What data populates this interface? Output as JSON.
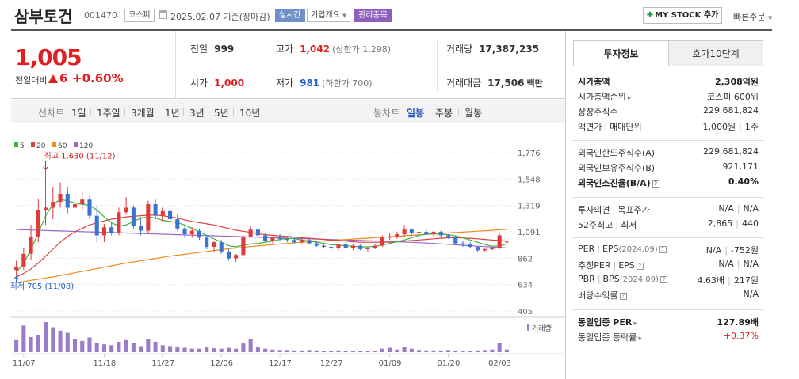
{
  "header": {
    "name": "삼부토건",
    "code": "001470",
    "market": "코스피",
    "date": "2025.02.07 기준(장마감)",
    "realtime": "실시간",
    "company_overview": "기업개요",
    "managed": "관리종목",
    "mystock": "MY STOCK 추가",
    "quick_order": "빠른주문"
  },
  "price": {
    "current": "1,005",
    "change_label": "전일대비",
    "change": "6",
    "change_pct": "+0.60%"
  },
  "stats": {
    "prev_label": "전일",
    "prev": "999",
    "open_label": "시가",
    "open": "1,000",
    "high_label": "고가",
    "high": "1,042",
    "upper_limit": "(상한가 1,298)",
    "low_label": "저가",
    "low": "981",
    "lower_limit": "(하한가 700)",
    "volume_label": "거래량",
    "volume": "17,387,235",
    "amount_label": "거래대금",
    "amount": "17,506",
    "amount_unit": "백만"
  },
  "periods": {
    "line_label": "선차트",
    "items": [
      "1일",
      "1주일",
      "3개월",
      "1년",
      "3년",
      "5년",
      "10년"
    ],
    "candle_label": "봉차트",
    "candle_items": [
      "일봉",
      "주봉",
      "월봉"
    ],
    "active_candle": "일봉"
  },
  "chart_data": {
    "type": "candlestick",
    "legend": [
      {
        "name": "5",
        "color": "#3cb33c"
      },
      {
        "name": "20",
        "color": "#e04040"
      },
      {
        "name": "60",
        "color": "#f08a1e"
      },
      {
        "name": "120",
        "color": "#9a66cc"
      }
    ],
    "y_ticks": [
      "1,776",
      "1,548",
      "1,319",
      "1,091",
      "862",
      "634",
      "405"
    ],
    "x_ticks": [
      "11/07",
      "11/18",
      "11/27",
      "12/06",
      "12/17",
      "12/27",
      "01/09",
      "01/20",
      "02/03"
    ],
    "max_label": "최고 1,630 (11/12)",
    "min_label": "최저 705 (11/08)",
    "volume_label": "거래량",
    "candles": [
      [
        760,
        840,
        705,
        790
      ],
      [
        790,
        950,
        760,
        900
      ],
      [
        900,
        1150,
        850,
        1050
      ],
      [
        1050,
        1380,
        1000,
        1280
      ],
      [
        1280,
        1630,
        1150,
        1300
      ],
      [
        1300,
        1480,
        1200,
        1350
      ],
      [
        1350,
        1520,
        1300,
        1420
      ],
      [
        1420,
        1480,
        1250,
        1300
      ],
      [
        1300,
        1400,
        1180,
        1330
      ],
      [
        1330,
        1450,
        1280,
        1370
      ],
      [
        1370,
        1400,
        1200,
        1230
      ],
      [
        1230,
        1320,
        1000,
        1060
      ],
      [
        1060,
        1160,
        1000,
        1130
      ],
      [
        1130,
        1180,
        1060,
        1080
      ],
      [
        1080,
        1300,
        1060,
        1260
      ],
      [
        1260,
        1390,
        1240,
        1300
      ],
      [
        1300,
        1320,
        1120,
        1140
      ],
      [
        1140,
        1220,
        1060,
        1100
      ],
      [
        1100,
        1360,
        1080,
        1330
      ],
      [
        1330,
        1370,
        1200,
        1230
      ],
      [
        1230,
        1300,
        1180,
        1270
      ],
      [
        1270,
        1320,
        1180,
        1200
      ],
      [
        1200,
        1240,
        1100,
        1120
      ],
      [
        1120,
        1140,
        1040,
        1070
      ],
      [
        1070,
        1130,
        1040,
        1100
      ],
      [
        1100,
        1120,
        1020,
        1040
      ],
      [
        1040,
        1060,
        940,
        960
      ],
      [
        960,
        1010,
        920,
        1000
      ],
      [
        1000,
        1020,
        900,
        920
      ],
      [
        920,
        940,
        840,
        860
      ],
      [
        860,
        900,
        830,
        890
      ],
      [
        890,
        1060,
        880,
        1050
      ],
      [
        1050,
        1140,
        1040,
        1110
      ],
      [
        1110,
        1130,
        1040,
        1060
      ],
      [
        1060,
        1080,
        1000,
        1010
      ],
      [
        1010,
        1050,
        990,
        1040
      ],
      [
        1040,
        1070,
        1010,
        1030
      ],
      [
        1030,
        1050,
        1000,
        1020
      ],
      [
        1020,
        1040,
        990,
        1000
      ],
      [
        1000,
        1030,
        990,
        1020
      ],
      [
        1020,
        1030,
        980,
        990
      ],
      [
        990,
        1010,
        960,
        970
      ],
      [
        970,
        990,
        950,
        960
      ],
      [
        960,
        980,
        930,
        950
      ],
      [
        950,
        990,
        930,
        980
      ],
      [
        980,
        990,
        940,
        950
      ],
      [
        950,
        980,
        930,
        970
      ],
      [
        970,
        980,
        930,
        940
      ],
      [
        940,
        960,
        920,
        950
      ],
      [
        950,
        980,
        940,
        970
      ],
      [
        970,
        1060,
        960,
        1040
      ],
      [
        1040,
        1080,
        1020,
        1050
      ],
      [
        1050,
        1090,
        1030,
        1070
      ],
      [
        1070,
        1150,
        1050,
        1110
      ],
      [
        1110,
        1120,
        1060,
        1080
      ],
      [
        1080,
        1100,
        1050,
        1090
      ],
      [
        1090,
        1110,
        1060,
        1070
      ],
      [
        1070,
        1100,
        1050,
        1090
      ],
      [
        1090,
        1100,
        1040,
        1060
      ],
      [
        1060,
        1070,
        1030,
        1050
      ],
      [
        1050,
        1060,
        980,
        990
      ],
      [
        990,
        1010,
        960,
        980
      ],
      [
        980,
        1000,
        950,
        960
      ],
      [
        960,
        970,
        920,
        930
      ],
      [
        930,
        950,
        920,
        940
      ],
      [
        940,
        960,
        930,
        950
      ],
      [
        950,
        1080,
        940,
        1060
      ],
      [
        999,
        1042,
        981,
        1005
      ]
    ],
    "volumes": [
      28,
      62,
      35,
      40,
      70,
      58,
      50,
      45,
      30,
      26,
      34,
      22,
      18,
      16,
      24,
      28,
      22,
      14,
      30,
      24,
      16,
      14,
      12,
      10,
      8,
      8,
      12,
      9,
      8,
      10,
      8,
      20,
      30,
      12,
      8,
      6,
      5,
      5,
      4,
      4,
      5,
      4,
      3,
      3,
      4,
      3,
      3,
      3,
      3,
      3,
      8,
      10,
      6,
      12,
      8,
      5,
      4,
      4,
      4,
      5,
      4,
      3,
      3,
      4,
      5,
      6,
      22,
      6
    ],
    "ma5": [
      740,
      820,
      940,
      1080,
      1230,
      1330,
      1370,
      1360,
      1340,
      1330,
      1320,
      1280,
      1220,
      1170,
      1140,
      1150,
      1180,
      1210,
      1220,
      1210,
      1190,
      1180,
      1170,
      1150,
      1120,
      1090,
      1060,
      1030,
      1000,
      970,
      960,
      975,
      985,
      990,
      1000,
      1010,
      1025,
      1035,
      1030,
      1020,
      1010,
      1000,
      990,
      980,
      975,
      970,
      965,
      960,
      960,
      965,
      975,
      990,
      1005,
      1020,
      1040,
      1060,
      1070,
      1075,
      1070,
      1065,
      1055,
      1040,
      1020,
      1000,
      980,
      965,
      970,
      985
    ],
    "ma20": [
      700,
      730,
      770,
      820,
      880,
      940,
      1000,
      1050,
      1090,
      1120,
      1150,
      1170,
      1185,
      1200,
      1210,
      1220,
      1225,
      1230,
      1235,
      1235,
      1230,
      1220,
      1210,
      1195,
      1180,
      1170,
      1160,
      1150,
      1135,
      1120,
      1105,
      1095,
      1085,
      1075,
      1065,
      1060,
      1055,
      1050,
      1045,
      1040,
      1035,
      1030,
      1025,
      1020,
      1015,
      1010,
      1005,
      1000,
      1000,
      1000,
      1000,
      1000,
      1005,
      1010,
      1015,
      1020,
      1025,
      1030,
      1035,
      1040,
      1040,
      1038,
      1035,
      1030,
      1025,
      1020,
      1015,
      1010
    ],
    "ma60": [
      650,
      660,
      670,
      680,
      690,
      700,
      712,
      724,
      736,
      748,
      760,
      772,
      784,
      796,
      808,
      820,
      830,
      840,
      850,
      860,
      870,
      880,
      888,
      896,
      904,
      912,
      920,
      928,
      936,
      944,
      950,
      956,
      962,
      968,
      974,
      980,
      985,
      990,
      995,
      1000,
      1004,
      1008,
      1012,
      1016,
      1020,
      1024,
      1028,
      1032,
      1036,
      1040,
      1044,
      1048,
      1052,
      1056,
      1060,
      1064,
      1068,
      1072,
      1076,
      1080,
      1084,
      1088,
      1092,
      1096,
      1100,
      1104,
      1108,
      1112
    ],
    "ma120": [
      1110,
      1108,
      1106,
      1104,
      1102,
      1100,
      1098,
      1096,
      1094,
      1092,
      1090,
      1088,
      1086,
      1084,
      1082,
      1080,
      1078,
      1076,
      1074,
      1072,
      1070,
      1068,
      1066,
      1064,
      1062,
      1060,
      1058,
      1056,
      1054,
      1052,
      1050,
      1048,
      1046,
      1044,
      1042,
      1040,
      1038,
      1036,
      1034,
      1032,
      1030,
      1028,
      1026,
      1024,
      1022,
      1020,
      1018,
      1016,
      1014,
      1012,
      1010,
      1008,
      1005,
      1002,
      999,
      996,
      993,
      990,
      986,
      982,
      978,
      974,
      970,
      966,
      962,
      958,
      954,
      950
    ]
  },
  "info": {
    "tab_invest": "투자정보",
    "tab_hoga": "호가10단계",
    "rows1": [
      {
        "k": "시가총액",
        "v": "2,308억원",
        "bold": true
      },
      {
        "k": "시가총액순위",
        "v": "코스피 600위",
        "arr": true
      },
      {
        "k": "상장주식수",
        "v": "229,681,824"
      },
      {
        "k": "액면가",
        "k2": "매매단위",
        "v": "1,000원",
        "v2": "1주"
      }
    ],
    "rows2": [
      {
        "k": "외국인한도주식수(A)",
        "v": "229,681,824"
      },
      {
        "k": "외국인보유주식수(B)",
        "v": "921,171"
      },
      {
        "k": "외국인소진율(B/A)",
        "v": "0.40%",
        "bold": true,
        "qm": true
      }
    ],
    "rows3": [
      {
        "k": "투자의견",
        "k2": "목표주가",
        "v": "N/A",
        "v2": "N/A"
      },
      {
        "k": "52주최고",
        "k2": "최저",
        "v": "2,865",
        "v2": "440"
      }
    ],
    "rows4": [
      {
        "k": "PER",
        "k2": "EPS",
        "k2s": "(2024.09)",
        "v": "N/A",
        "v2": "-752원",
        "qm": true
      },
      {
        "k": "추정PER",
        "k2": "EPS",
        "v": "N/A",
        "v2": "N/A",
        "qm": true
      },
      {
        "k": "PBR",
        "k2": "BPS",
        "k2s": "(2024.09)",
        "v": "4.63배",
        "v2": "217원",
        "qm": true
      },
      {
        "k": "배당수익률",
        "v": "N/A",
        "qm": true
      }
    ],
    "rows5": [
      {
        "k": "동일업종 PER",
        "v": "127.89배",
        "bold": true,
        "arr": true
      },
      {
        "k": "동일업종 등락률",
        "v": "+0.37%",
        "red": true,
        "arr": true
      }
    ]
  }
}
